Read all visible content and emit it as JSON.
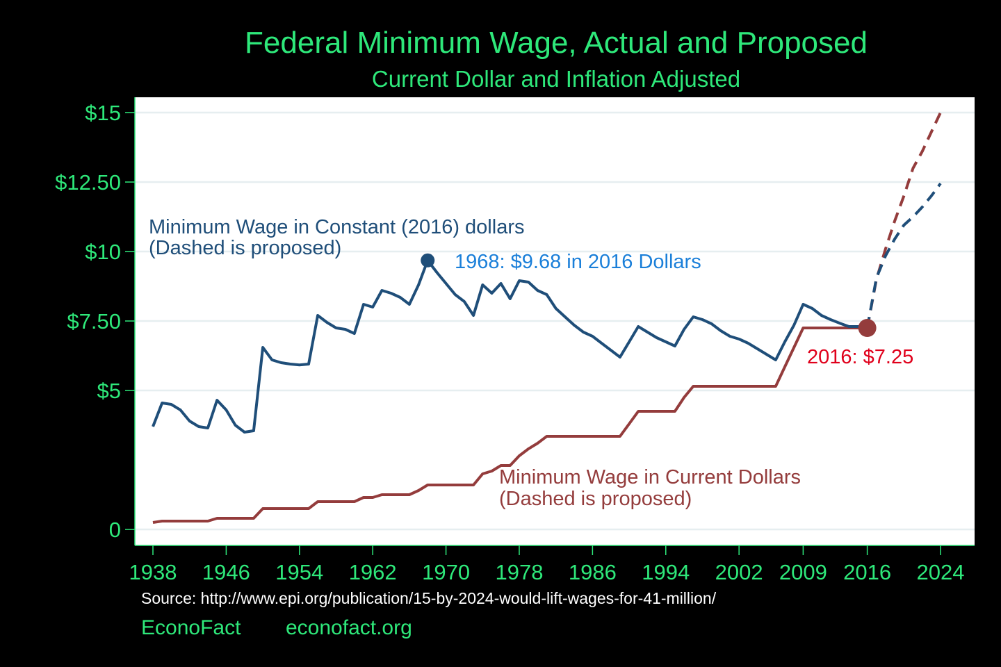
{
  "colors": {
    "background": "#000000",
    "plot_bg": "#ffffff",
    "grid": "#e6eef0",
    "accent_green": "#2ee87a",
    "constant_line": "#1f4e79",
    "current_line": "#943c3c",
    "peak_label": "#1a7fd9",
    "end_label": "#e0001b",
    "source_text": "#ffffff"
  },
  "footer": {
    "source": "Source: http://www.epi.org/publication/15-by-2024-would-lift-wages-for-41-million/",
    "brand": "EconoFact",
    "site": "econofact.org"
  },
  "chart_data": {
    "type": "line",
    "title": "Federal Minimum Wage, Actual and Proposed",
    "subtitle": "Current Dollar and Inflation Adjusted",
    "xlim": [
      1938,
      2024
    ],
    "ylim": [
      0,
      15
    ],
    "x_ticks": [
      {
        "value": 1938,
        "label": "1938"
      },
      {
        "value": 1946,
        "label": "1946"
      },
      {
        "value": 1954,
        "label": "1954"
      },
      {
        "value": 1962,
        "label": "1962"
      },
      {
        "value": 1970,
        "label": "1970"
      },
      {
        "value": 1978,
        "label": "1978"
      },
      {
        "value": 1986,
        "label": "1986"
      },
      {
        "value": 1994,
        "label": "1994"
      },
      {
        "value": 2002,
        "label": "2002"
      },
      {
        "value": 2009,
        "label": "2009"
      },
      {
        "value": 2016,
        "label": "2016"
      },
      {
        "value": 2024,
        "label": "2024"
      }
    ],
    "y_ticks": [
      {
        "value": 0,
        "label": "0"
      },
      {
        "value": 5,
        "label": "$5"
      },
      {
        "value": 7.5,
        "label": "$7.50"
      },
      {
        "value": 10,
        "label": "$10"
      },
      {
        "value": 12.5,
        "label": "$12.50"
      },
      {
        "value": 15,
        "label": "$15"
      }
    ],
    "grid": true,
    "series": [
      {
        "name": "Minimum Wage in Constant (2016) dollars",
        "note": "(Dashed is proposed)",
        "actual": [
          [
            1938,
            3.7
          ],
          [
            1939,
            4.55
          ],
          [
            1940,
            4.5
          ],
          [
            1941,
            4.3
          ],
          [
            1942,
            3.9
          ],
          [
            1943,
            3.7
          ],
          [
            1944,
            3.65
          ],
          [
            1945,
            4.65
          ],
          [
            1946,
            4.3
          ],
          [
            1947,
            3.75
          ],
          [
            1948,
            3.5
          ],
          [
            1949,
            3.55
          ],
          [
            1950,
            6.55
          ],
          [
            1951,
            6.1
          ],
          [
            1952,
            6.0
          ],
          [
            1953,
            5.95
          ],
          [
            1954,
            5.92
          ],
          [
            1955,
            5.95
          ],
          [
            1956,
            7.7
          ],
          [
            1957,
            7.45
          ],
          [
            1958,
            7.25
          ],
          [
            1959,
            7.2
          ],
          [
            1960,
            7.05
          ],
          [
            1961,
            8.1
          ],
          [
            1962,
            8.0
          ],
          [
            1963,
            8.6
          ],
          [
            1964,
            8.5
          ],
          [
            1965,
            8.35
          ],
          [
            1966,
            8.1
          ],
          [
            1967,
            8.8
          ],
          [
            1968,
            9.68
          ],
          [
            1969,
            9.25
          ],
          [
            1970,
            8.85
          ],
          [
            1971,
            8.45
          ],
          [
            1972,
            8.2
          ],
          [
            1973,
            7.7
          ],
          [
            1974,
            8.8
          ],
          [
            1975,
            8.5
          ],
          [
            1976,
            8.85
          ],
          [
            1977,
            8.3
          ],
          [
            1978,
            8.95
          ],
          [
            1979,
            8.9
          ],
          [
            1980,
            8.6
          ],
          [
            1981,
            8.45
          ],
          [
            1982,
            7.95
          ],
          [
            1983,
            7.65
          ],
          [
            1984,
            7.35
          ],
          [
            1985,
            7.1
          ],
          [
            1986,
            6.95
          ],
          [
            1987,
            6.7
          ],
          [
            1988,
            6.45
          ],
          [
            1989,
            6.2
          ],
          [
            1990,
            6.75
          ],
          [
            1991,
            7.3
          ],
          [
            1992,
            7.1
          ],
          [
            1993,
            6.9
          ],
          [
            1994,
            6.75
          ],
          [
            1995,
            6.6
          ],
          [
            1996,
            7.2
          ],
          [
            1997,
            7.65
          ],
          [
            1998,
            7.55
          ],
          [
            1999,
            7.4
          ],
          [
            2000,
            7.15
          ],
          [
            2001,
            6.95
          ],
          [
            2002,
            6.85
          ],
          [
            2003,
            6.7
          ],
          [
            2004,
            6.5
          ],
          [
            2005,
            6.3
          ],
          [
            2006,
            6.1
          ],
          [
            2007,
            6.75
          ],
          [
            2008,
            7.35
          ],
          [
            2009,
            8.1
          ],
          [
            2010,
            7.95
          ],
          [
            2011,
            7.7
          ],
          [
            2012,
            7.55
          ],
          [
            2013,
            7.42
          ],
          [
            2014,
            7.3
          ],
          [
            2015,
            7.3
          ],
          [
            2016,
            7.25
          ]
        ],
        "proposed": [
          [
            2016,
            7.25
          ],
          [
            2017,
            9.05
          ],
          [
            2018,
            9.85
          ],
          [
            2019,
            10.45
          ],
          [
            2020,
            10.95
          ],
          [
            2021,
            11.25
          ],
          [
            2022,
            11.6
          ],
          [
            2023,
            12.0
          ],
          [
            2024,
            12.45
          ]
        ]
      },
      {
        "name": "Minimum Wage in Current Dollars",
        "note": "(Dashed is proposed)",
        "actual": [
          [
            1938,
            0.25
          ],
          [
            1939,
            0.3
          ],
          [
            1940,
            0.3
          ],
          [
            1941,
            0.3
          ],
          [
            1942,
            0.3
          ],
          [
            1943,
            0.3
          ],
          [
            1944,
            0.3
          ],
          [
            1945,
            0.4
          ],
          [
            1946,
            0.4
          ],
          [
            1947,
            0.4
          ],
          [
            1948,
            0.4
          ],
          [
            1949,
            0.4
          ],
          [
            1950,
            0.75
          ],
          [
            1951,
            0.75
          ],
          [
            1952,
            0.75
          ],
          [
            1953,
            0.75
          ],
          [
            1954,
            0.75
          ],
          [
            1955,
            0.75
          ],
          [
            1956,
            1.0
          ],
          [
            1957,
            1.0
          ],
          [
            1958,
            1.0
          ],
          [
            1959,
            1.0
          ],
          [
            1960,
            1.0
          ],
          [
            1961,
            1.15
          ],
          [
            1962,
            1.15
          ],
          [
            1963,
            1.25
          ],
          [
            1964,
            1.25
          ],
          [
            1965,
            1.25
          ],
          [
            1966,
            1.25
          ],
          [
            1967,
            1.4
          ],
          [
            1968,
            1.6
          ],
          [
            1969,
            1.6
          ],
          [
            1970,
            1.6
          ],
          [
            1971,
            1.6
          ],
          [
            1972,
            1.6
          ],
          [
            1973,
            1.6
          ],
          [
            1974,
            2.0
          ],
          [
            1975,
            2.1
          ],
          [
            1976,
            2.3
          ],
          [
            1977,
            2.3
          ],
          [
            1978,
            2.65
          ],
          [
            1979,
            2.9
          ],
          [
            1980,
            3.1
          ],
          [
            1981,
            3.35
          ],
          [
            1982,
            3.35
          ],
          [
            1983,
            3.35
          ],
          [
            1984,
            3.35
          ],
          [
            1985,
            3.35
          ],
          [
            1986,
            3.35
          ],
          [
            1987,
            3.35
          ],
          [
            1988,
            3.35
          ],
          [
            1989,
            3.35
          ],
          [
            1990,
            3.8
          ],
          [
            1991,
            4.25
          ],
          [
            1992,
            4.25
          ],
          [
            1993,
            4.25
          ],
          [
            1994,
            4.25
          ],
          [
            1995,
            4.25
          ],
          [
            1996,
            4.75
          ],
          [
            1997,
            5.15
          ],
          [
            1998,
            5.15
          ],
          [
            1999,
            5.15
          ],
          [
            2000,
            5.15
          ],
          [
            2001,
            5.15
          ],
          [
            2002,
            5.15
          ],
          [
            2003,
            5.15
          ],
          [
            2004,
            5.15
          ],
          [
            2005,
            5.15
          ],
          [
            2006,
            5.15
          ],
          [
            2007,
            5.85
          ],
          [
            2008,
            6.55
          ],
          [
            2009,
            7.25
          ],
          [
            2010,
            7.25
          ],
          [
            2011,
            7.25
          ],
          [
            2012,
            7.25
          ],
          [
            2013,
            7.25
          ],
          [
            2014,
            7.25
          ],
          [
            2015,
            7.25
          ],
          [
            2016,
            7.25
          ]
        ],
        "proposed": [
          [
            2016,
            7.25
          ],
          [
            2017,
            9.0
          ],
          [
            2018,
            10.1
          ],
          [
            2019,
            11.1
          ],
          [
            2020,
            12.0
          ],
          [
            2021,
            13.0
          ],
          [
            2022,
            13.6
          ],
          [
            2023,
            14.3
          ],
          [
            2024,
            15.0
          ]
        ]
      }
    ],
    "annotations": [
      {
        "text": "1968: $9.68 in 2016 Dollars",
        "x": 1968,
        "y": 9.68,
        "marker_series": 0
      },
      {
        "text": "2016: $7.25",
        "x": 2016,
        "y": 7.25,
        "marker_series": 1
      }
    ]
  }
}
